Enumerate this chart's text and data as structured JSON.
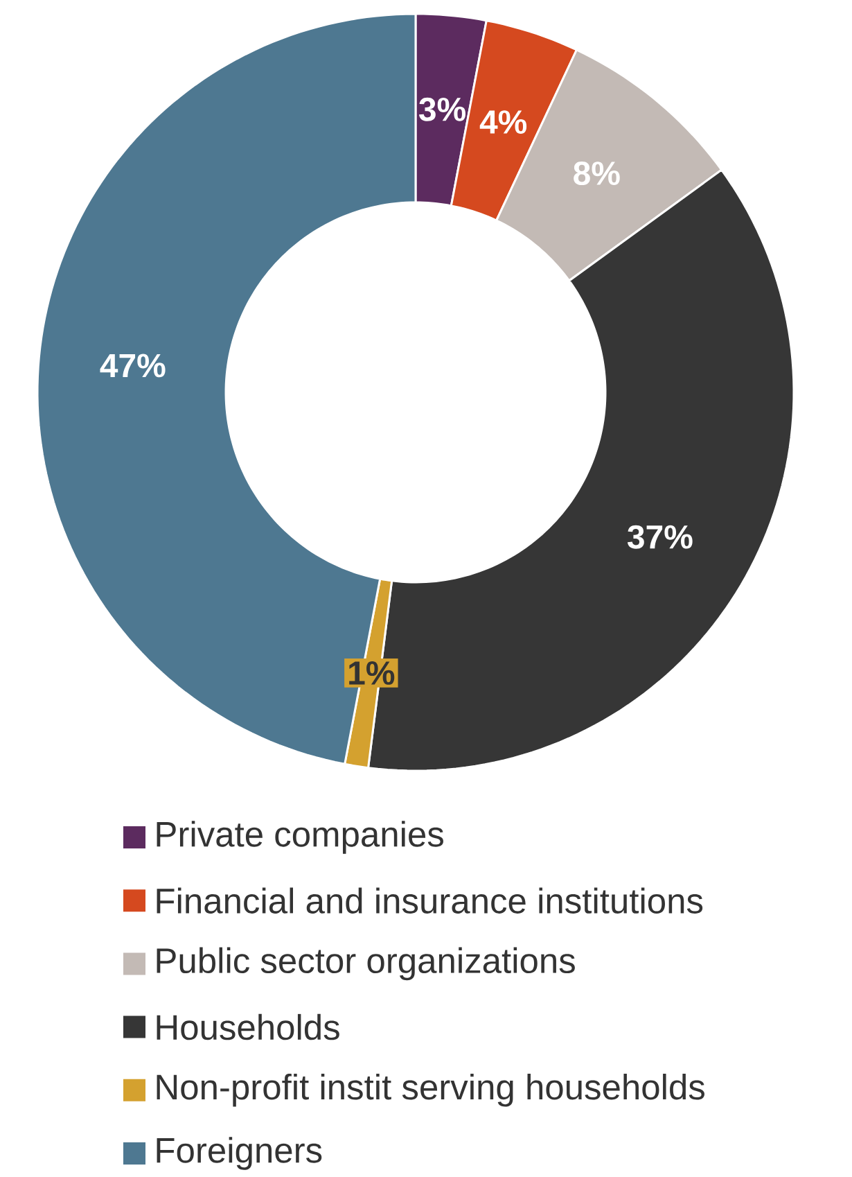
{
  "chart_data": {
    "type": "donut",
    "categories": [
      "Private companies",
      "Financial and insurance institutions",
      "Public sector organizations",
      "Households",
      "Non-profit instit serving households",
      "Foreigners"
    ],
    "values": [
      3,
      4,
      8,
      37,
      1,
      47
    ],
    "colors": [
      "#5c2b5f",
      "#d5491f",
      "#c3bab5",
      "#363636",
      "#d4a12f",
      "#4e7891"
    ],
    "value_labels": [
      "3%",
      "4%",
      "8%",
      "37%",
      "1%",
      "47%"
    ],
    "legend": "bottom"
  }
}
